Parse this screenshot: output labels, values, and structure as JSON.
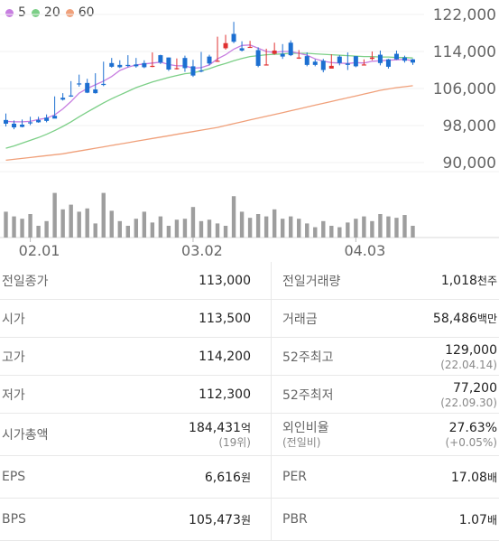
{
  "legend": [
    {
      "label": "5",
      "color": "#c77ee0"
    },
    {
      "label": "20",
      "color": "#7ccf87"
    },
    {
      "label": "60",
      "color": "#f0a07a"
    }
  ],
  "colors": {
    "up": "#e03131",
    "down": "#1c6fd1",
    "volume": "#9e9e9e"
  },
  "chart_data": {
    "type": "candlestick",
    "y_ticks": [
      "122,000",
      "114,000",
      "106,000",
      "98,000",
      "90,000"
    ],
    "ylim": [
      90000,
      122000
    ],
    "x_ticks": [
      {
        "label": "02.01",
        "index": 3
      },
      {
        "label": "03.02",
        "index": 23
      },
      {
        "label": "04.03",
        "index": 43
      }
    ],
    "candles": [
      [
        99200,
        100600,
        98400,
        97800
      ],
      [
        98400,
        99100,
        97600,
        97200
      ],
      [
        98200,
        99300,
        97700,
        97600
      ],
      [
        98700,
        99900,
        98600,
        98100
      ],
      [
        99200,
        99900,
        98700,
        98600
      ],
      [
        99700,
        100400,
        99000,
        98700
      ],
      [
        100100,
        104300,
        99500,
        99800
      ],
      [
        104000,
        105000,
        103600,
        103400
      ],
      [
        104500,
        107600,
        104400,
        104200
      ],
      [
        107100,
        109000,
        106900,
        106400
      ],
      [
        107200,
        108100,
        105100,
        105000
      ],
      [
        105800,
        109300,
        105000,
        104900
      ],
      [
        107000,
        111800,
        106800,
        106500
      ],
      [
        111500,
        112600,
        110700,
        110500
      ],
      [
        111100,
        112100,
        110600,
        110400
      ],
      [
        111100,
        113200,
        110900,
        110600
      ],
      [
        111200,
        112600,
        110800,
        110500
      ],
      [
        111500,
        112100,
        110600,
        110400
      ],
      [
        110900,
        113800,
        110900,
        110600
      ],
      [
        113200,
        113300,
        111600,
        111300
      ],
      [
        112700,
        112700,
        110100,
        109800
      ],
      [
        110400,
        112500,
        110400,
        110100
      ],
      [
        112600,
        113100,
        110400,
        109600
      ],
      [
        110800,
        112200,
        108800,
        108500
      ],
      [
        109900,
        113900,
        109800,
        109500
      ],
      [
        112900,
        113300,
        111400,
        111000
      ],
      [
        111900,
        117200,
        112000,
        111800
      ],
      [
        114700,
        117600,
        115800,
        114400
      ],
      [
        117800,
        120400,
        116100,
        115800
      ],
      [
        114700,
        116200,
        114200,
        114000
      ],
      [
        114900,
        116300,
        115000,
        114800
      ],
      [
        114300,
        114900,
        110900,
        110600
      ],
      [
        111200,
        114600,
        111200,
        111100
      ],
      [
        113500,
        115900,
        114200,
        113300
      ],
      [
        113500,
        115600,
        112900,
        112400
      ],
      [
        115900,
        116400,
        113200,
        113000
      ],
      [
        112700,
        114300,
        112700,
        112400
      ],
      [
        113000,
        113800,
        111100,
        110800
      ],
      [
        111800,
        112300,
        111100,
        110800
      ],
      [
        112000,
        112400,
        110000,
        109500
      ],
      [
        110300,
        113400,
        110900,
        110700
      ],
      [
        112900,
        113200,
        111500,
        111000
      ],
      [
        111400,
        113800,
        111100,
        110000
      ],
      [
        113000,
        113000,
        110800,
        110600
      ],
      [
        111200,
        112300,
        111200,
        111000
      ],
      [
        112400,
        114000,
        112700,
        112100
      ],
      [
        113300,
        114200,
        111500,
        111000
      ],
      [
        112300,
        112400,
        110700,
        110300
      ],
      [
        113500,
        114200,
        112300,
        112200
      ],
      [
        112700,
        113100,
        112000,
        111600
      ],
      [
        112300,
        112400,
        111600,
        111100
      ]
    ],
    "ma5": [
      98900,
      98800,
      98800,
      98900,
      99300,
      99600,
      100300,
      101600,
      103200,
      105000,
      106000,
      106800,
      107600,
      108600,
      109900,
      110600,
      111100,
      111300,
      111500,
      111700,
      111200,
      110900,
      110900,
      110400,
      110500,
      111100,
      112400,
      113300,
      114500,
      115300,
      115400,
      114700,
      114000,
      113800,
      114000,
      114000,
      113600,
      113200,
      112400,
      111900,
      111600,
      111500,
      111400,
      111600,
      111500,
      111900,
      112000,
      112100,
      112200,
      112300,
      112000
    ],
    "ma20": [
      93100,
      93600,
      94200,
      94800,
      95400,
      96100,
      96900,
      97800,
      98800,
      99900,
      100900,
      101900,
      102900,
      103800,
      104600,
      105400,
      106200,
      106800,
      107400,
      107900,
      108400,
      108800,
      109200,
      109400,
      109800,
      110300,
      110900,
      111400,
      112000,
      112500,
      112900,
      113100,
      113300,
      113400,
      113500,
      113600,
      113600,
      113600,
      113500,
      113400,
      113300,
      113200,
      113100,
      113000,
      112900,
      112900,
      112800,
      112800,
      112700,
      112700,
      112600
    ],
    "ma60": [
      90500,
      90700,
      90900,
      91100,
      91300,
      91500,
      91700,
      91900,
      92200,
      92500,
      92800,
      93100,
      93400,
      93700,
      94000,
      94300,
      94600,
      94900,
      95200,
      95500,
      95800,
      96100,
      96400,
      96700,
      97000,
      97300,
      97600,
      98000,
      98400,
      98800,
      99200,
      99600,
      100000,
      100400,
      100800,
      101200,
      101600,
      102000,
      102400,
      102800,
      103200,
      103600,
      104000,
      104400,
      104800,
      105200,
      105600,
      105900,
      106200,
      106400,
      106600
    ],
    "volume": [
      0.55,
      0.45,
      0.4,
      0.5,
      0.25,
      0.35,
      0.95,
      0.6,
      0.7,
      0.55,
      0.62,
      0.3,
      0.95,
      0.57,
      0.35,
      0.25,
      0.4,
      0.55,
      0.32,
      0.45,
      0.25,
      0.38,
      0.4,
      0.65,
      0.35,
      0.38,
      0.3,
      0.25,
      0.88,
      0.55,
      0.42,
      0.5,
      0.45,
      0.6,
      0.4,
      0.45,
      0.4,
      0.3,
      0.22,
      0.35,
      0.25,
      0.22,
      0.32,
      0.4,
      0.45,
      0.35,
      0.5,
      0.45,
      0.42,
      0.48,
      0.25
    ]
  },
  "info": {
    "rows": [
      {
        "l1": "전일종가",
        "v1": "113,000",
        "c1": "",
        "l2": "전일거래량",
        "v2": "1,018",
        "u2": "천주",
        "s2": ""
      },
      {
        "l1": "시가",
        "v1": "113,500",
        "c1": "up",
        "l2": "거래금",
        "v2": "58,486",
        "u2": "백만",
        "s2": ""
      },
      {
        "l1": "고가",
        "v1": "114,200",
        "c1": "up",
        "l2": "52주최고",
        "v2": "129,000",
        "u2": "",
        "s2": "(22.04.14)"
      },
      {
        "l1": "저가",
        "v1": "112,300",
        "c1": "down",
        "l2": "52주최저",
        "v2": "77,200",
        "u2": "",
        "s2": "(22.09.30)"
      }
    ],
    "market_cap": {
      "label": "시가총액",
      "value": "184,431",
      "unit": "억",
      "sub": "(19위)"
    },
    "foreign": {
      "label": "외인비율",
      "label_sub": "(전일비)",
      "value": "27.63%",
      "sub": "(+0.05%)"
    },
    "eps": {
      "label": "EPS",
      "value": "6,616",
      "unit": "원"
    },
    "per": {
      "label": "PER",
      "value": "17.08",
      "unit": "배"
    },
    "bps": {
      "label": "BPS",
      "value": "105,473",
      "unit": "원"
    },
    "pbr": {
      "label": "PBR",
      "value": "1.07",
      "unit": "배"
    }
  }
}
